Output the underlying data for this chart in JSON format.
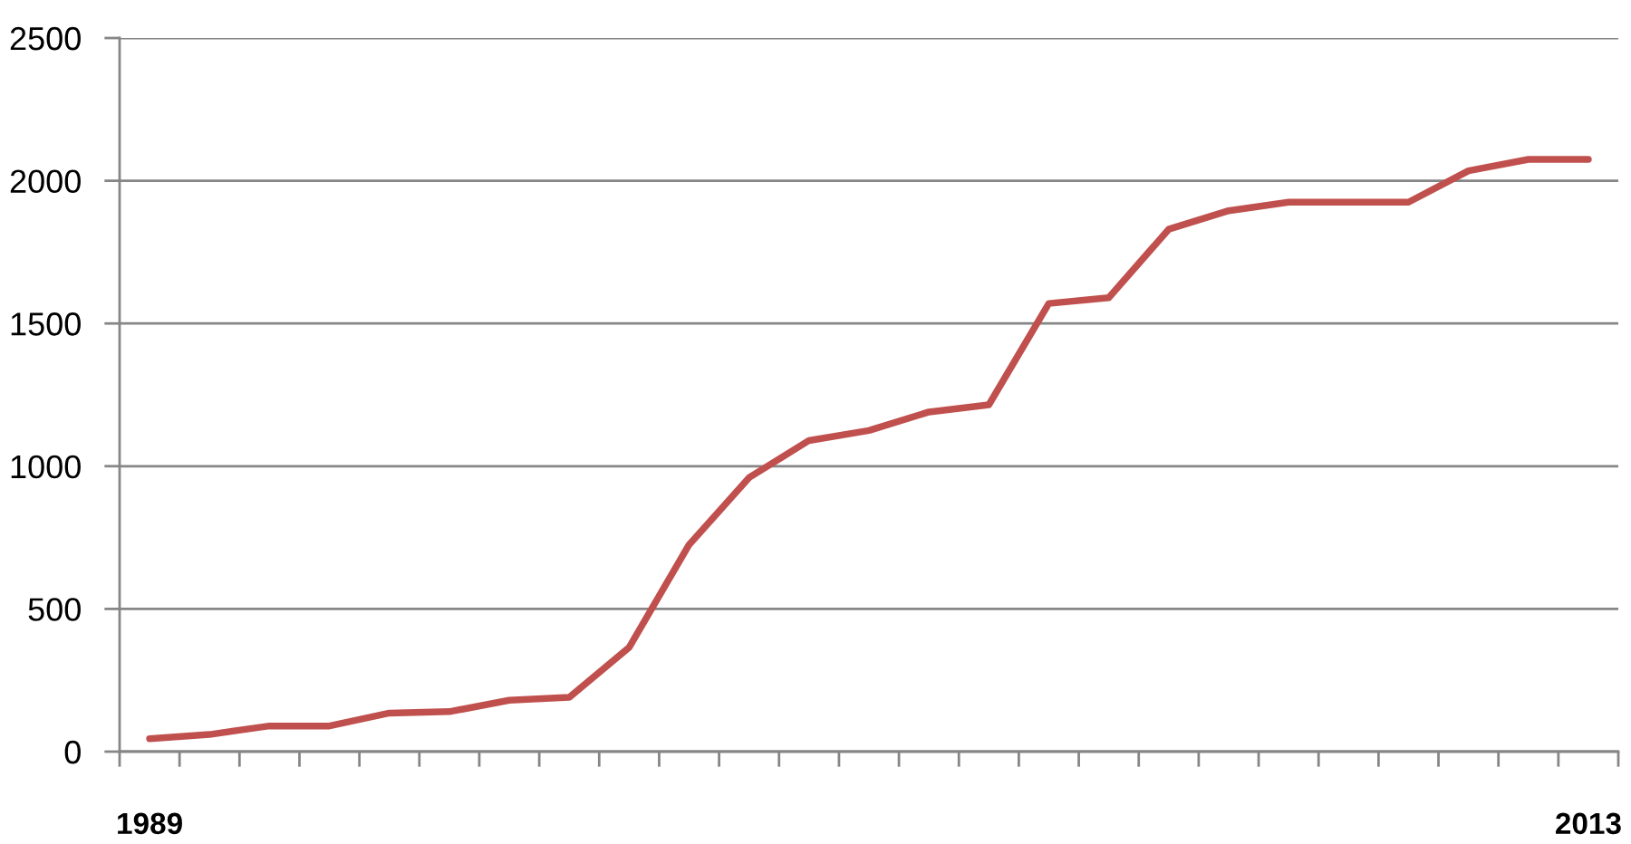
{
  "chart_data": {
    "type": "line",
    "categories": [
      "1989",
      null,
      null,
      null,
      null,
      null,
      null,
      null,
      null,
      null,
      null,
      null,
      null,
      null,
      null,
      null,
      null,
      null,
      null,
      null,
      null,
      null,
      null,
      null,
      "2013"
    ],
    "series": [
      {
        "color": "#c0504d",
        "values": [
          45,
          60,
          90,
          90,
          135,
          140,
          180,
          190,
          365,
          725,
          960,
          1090,
          1125,
          1190,
          1215,
          1570,
          1590,
          1830,
          1895,
          1925,
          1925,
          1925,
          2035,
          2075,
          2075
        ]
      }
    ],
    "ylim": [
      0,
      2500
    ],
    "yticks": [
      0,
      500,
      1000,
      1500,
      2000,
      2500
    ],
    "grid": "y"
  }
}
